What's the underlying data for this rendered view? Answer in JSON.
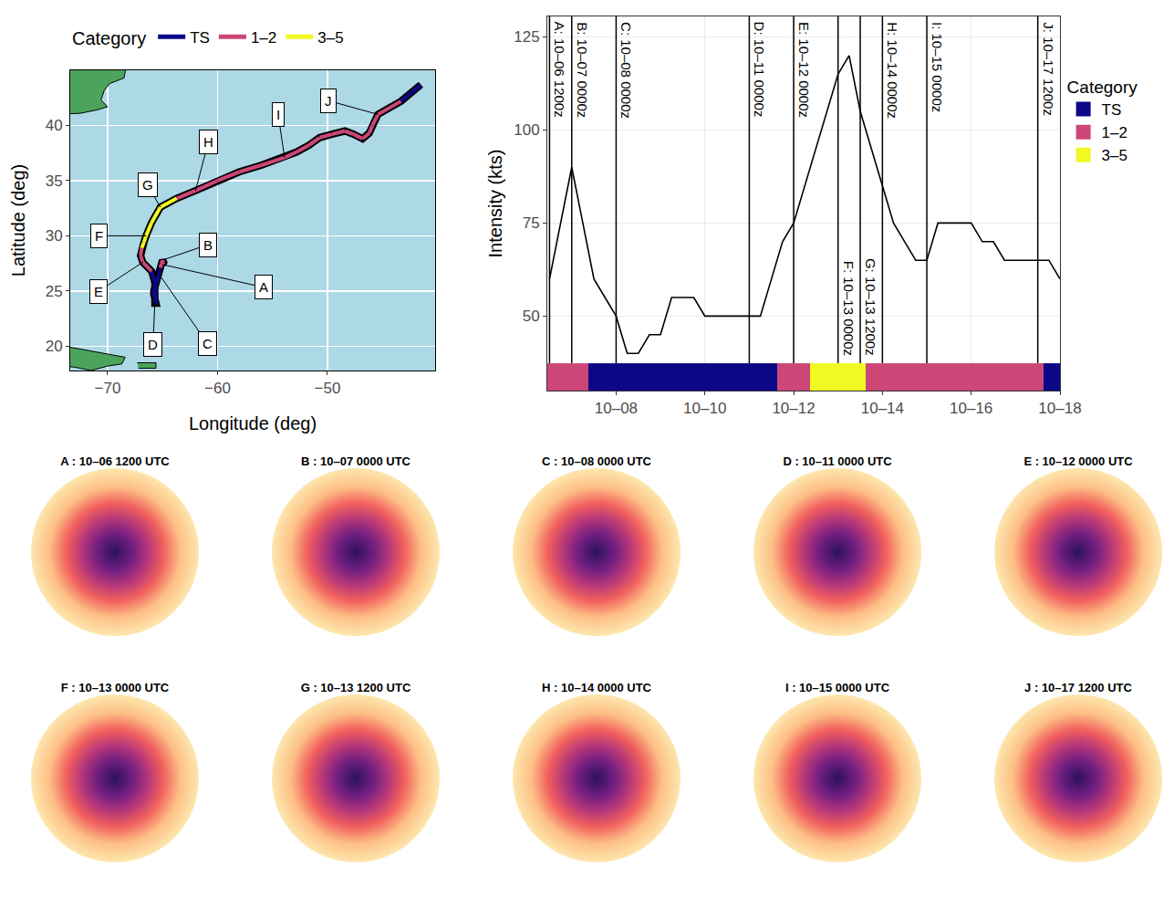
{
  "chart_data": [
    {
      "type": "line",
      "x_label": "Longitude (deg)",
      "y_label": "Latitude (deg)",
      "legend": "top",
      "legend_title": "Category",
      "grid": true,
      "color": "#000000",
      "xlim": [
        -73.4,
        -40.2
      ],
      "ylim": [
        17.8,
        45.0
      ],
      "xticks": [
        {
          "value": -70,
          "label": "−70"
        },
        {
          "value": -60,
          "label": "−60"
        },
        {
          "value": -50,
          "label": "−50"
        }
      ],
      "yticks": [
        20,
        25,
        30,
        35,
        40
      ],
      "series": [
        {
          "name": "TS",
          "color": "#0D0887"
        },
        {
          "name": "1–2",
          "color": "#CC4778"
        },
        {
          "name": "3–5",
          "color": "#F0F921"
        }
      ],
      "time": [
        6.5,
        6.75,
        7.0,
        7.25,
        7.5,
        7.75,
        8.0,
        8.25,
        8.5,
        8.75,
        9.0,
        9.25,
        9.5,
        9.75,
        10.0,
        10.25,
        10.5,
        10.75,
        11.0,
        11.25,
        11.5,
        11.75,
        12.0,
        12.25,
        12.5,
        12.75,
        13.0,
        13.25,
        13.5,
        13.75,
        14.0,
        14.25,
        14.5,
        14.75,
        15.0,
        15.25,
        15.5,
        15.75,
        16.0,
        16.25,
        16.5,
        16.75,
        17.0,
        17.25,
        17.5,
        17.75,
        18.0
      ],
      "x": [
        -65.0,
        -64.9,
        -65.0,
        -65.1,
        -65.2,
        -65.3,
        -65.3,
        -65.4,
        -65.5,
        -65.6,
        -65.7,
        -65.8,
        -65.8,
        -65.7,
        -65.6,
        -65.5,
        -65.6,
        -65.7,
        -65.7,
        -65.6,
        -65.7,
        -66.0,
        -66.8,
        -67.0,
        -66.9,
        -66.7,
        -66.5,
        -66.0,
        -65.2,
        -63.7,
        -62.0,
        -60.0,
        -58.0,
        -56.0,
        -53.9,
        -52.8,
        -51.7,
        -50.7,
        -49.6,
        -48.4,
        -47.6,
        -46.8,
        -46.2,
        -45.9,
        -45.4,
        -43.3,
        -41.5
      ],
      "y": [
        27.4,
        27.6,
        27.8,
        27.5,
        27.1,
        26.8,
        26.5,
        26.2,
        25.9,
        25.6,
        25.3,
        25.0,
        24.7,
        24.4,
        24.2,
        24.0,
        23.9,
        23.9,
        24.0,
        24.8,
        25.8,
        26.8,
        27.6,
        28.2,
        28.9,
        29.4,
        30.0,
        31.2,
        32.6,
        33.4,
        34.1,
        35.0,
        35.8,
        36.4,
        37.1,
        37.6,
        38.2,
        38.9,
        39.2,
        39.5,
        39.2,
        38.8,
        39.3,
        40.0,
        41.0,
        42.2,
        43.7
      ],
      "category": [
        "1–2",
        "1–2",
        "1–2",
        "1–2",
        "TS",
        "TS",
        "TS",
        "TS",
        "TS",
        "TS",
        "TS",
        "TS",
        "TS",
        "TS",
        "TS",
        "TS",
        "TS",
        "TS",
        "TS",
        "TS",
        "TS",
        "1–2",
        "1–2",
        "1–2",
        "3–5",
        "3–5",
        "3–5",
        "3–5",
        "3–5",
        "1–2",
        "1–2",
        "1–2",
        "1–2",
        "1–2",
        "1–2",
        "1–2",
        "1–2",
        "1–2",
        "1–2",
        "1–2",
        "1–2",
        "1–2",
        "1–2",
        "1–2",
        "1–2",
        "TS",
        "TS"
      ],
      "labels": [
        {
          "text": "A",
          "time": 6.5
        },
        {
          "text": "B",
          "time": 7.0
        },
        {
          "text": "C",
          "time": 8.0
        },
        {
          "text": "D",
          "time": 11.0
        },
        {
          "text": "E",
          "time": 12.0
        },
        {
          "text": "F",
          "time": 13.0
        },
        {
          "text": "G",
          "time": 13.5
        },
        {
          "text": "H",
          "time": 14.0
        },
        {
          "text": "I",
          "time": 15.0
        },
        {
          "text": "J",
          "time": 17.5
        }
      ],
      "land": {
        "color": "#4CA45C",
        "polygons": [
          {
            "lon": [
              -75,
              -68.2,
              -68.5,
              -69.8,
              -70.3,
              -70.6,
              -70.0,
              -71.0,
              -72.5,
              -75
            ],
            "lat": [
              46,
              46,
              44.3,
              43.8,
              43.2,
              42.3,
              41.7,
              41.4,
              41.1,
              41.0
            ]
          },
          {
            "lon": [
              -75,
              -68.4,
              -68.7,
              -70,
              -71.5,
              -73,
              -75
            ],
            "lat": [
              20.2,
              19.0,
              18.4,
              18.2,
              17.8,
              18.1,
              18.3
            ]
          },
          {
            "lon": [
              -67.3,
              -65.6,
              -65.6,
              -67.2
            ],
            "lat": [
              18.5,
              18.5,
              18.0,
              18.0
            ]
          }
        ]
      }
    },
    {
      "type": "line",
      "y_label": "Intensity (kts)",
      "legend": "right",
      "legend_title": "Category",
      "grid": true,
      "color": "#000000",
      "xlim": [
        6.45,
        18.0
      ],
      "ylim": [
        30,
        130.5
      ],
      "xticks": [
        {
          "value": 8,
          "label": "10–08"
        },
        {
          "value": 10,
          "label": "10–10"
        },
        {
          "value": 12,
          "label": "10–12"
        },
        {
          "value": 14,
          "label": "10–14"
        },
        {
          "value": 16,
          "label": "10–16"
        },
        {
          "value": 18,
          "label": "10–18"
        }
      ],
      "yticks": [
        50,
        75,
        100,
        125
      ],
      "series": [
        {
          "name": "TS",
          "color": "#0D0887"
        },
        {
          "name": "1–2",
          "color": "#CC4778"
        },
        {
          "name": "3–5",
          "color": "#F0F921"
        }
      ],
      "x": [
        6.5,
        6.75,
        7.0,
        7.25,
        7.5,
        7.75,
        8.0,
        8.25,
        8.5,
        8.75,
        9.0,
        9.25,
        9.5,
        9.75,
        10.0,
        10.25,
        10.5,
        10.75,
        11.0,
        11.25,
        11.5,
        11.75,
        12.0,
        12.25,
        12.5,
        12.75,
        13.0,
        13.25,
        13.5,
        13.75,
        14.0,
        14.25,
        14.5,
        14.75,
        15.0,
        15.25,
        15.5,
        15.75,
        16.0,
        16.25,
        16.5,
        16.75,
        17.0,
        17.25,
        17.5,
        17.75,
        18.0
      ],
      "values": [
        60,
        75,
        90,
        75,
        60,
        55,
        50,
        40,
        40,
        45,
        45,
        55,
        55,
        55,
        50,
        50,
        50,
        50,
        50,
        50,
        60,
        70,
        75,
        85,
        95,
        105,
        115,
        120,
        105,
        95,
        85,
        75,
        70,
        65,
        65,
        75,
        75,
        75,
        75,
        70,
        70,
        65,
        65,
        65,
        65,
        65,
        60
      ],
      "category": [
        "1–2",
        "1–2",
        "1–2",
        "1–2",
        "TS",
        "TS",
        "TS",
        "TS",
        "TS",
        "TS",
        "TS",
        "TS",
        "TS",
        "TS",
        "TS",
        "TS",
        "TS",
        "TS",
        "TS",
        "TS",
        "TS",
        "1–2",
        "1–2",
        "1–2",
        "3–5",
        "3–5",
        "3–5",
        "3–5",
        "3–5",
        "1–2",
        "1–2",
        "1–2",
        "1–2",
        "1–2",
        "1–2",
        "1–2",
        "1–2",
        "1–2",
        "1–2",
        "1–2",
        "1–2",
        "1–2",
        "1–2",
        "1–2",
        "1–2",
        "TS",
        "TS"
      ],
      "events": [
        {
          "x": 6.5,
          "label": "A: 10–06 1200z"
        },
        {
          "x": 7.0,
          "label": "B: 10–07 0000z"
        },
        {
          "x": 8.0,
          "label": "C: 10–08 0000z"
        },
        {
          "x": 11.0,
          "label": "D: 10–11 0000z"
        },
        {
          "x": 12.0,
          "label": "E: 10–12 0000z"
        },
        {
          "x": 13.0,
          "label": "F: 10–13 0000z"
        },
        {
          "x": 13.5,
          "label": "G: 10–13 1200z"
        },
        {
          "x": 14.0,
          "label": "H: 10–14 0000z"
        },
        {
          "x": 15.0,
          "label": "I: 10–15 0000z"
        },
        {
          "x": 17.5,
          "label": "J: 10–17 1200z"
        }
      ]
    }
  ],
  "image_panels": [
    {
      "title": "A : 10–06 1200 UTC"
    },
    {
      "title": "B : 10–07 0000 UTC"
    },
    {
      "title": "C : 10–08 0000 UTC"
    },
    {
      "title": "D : 10–11 0000 UTC"
    },
    {
      "title": "E : 10–12 0000 UTC"
    },
    {
      "title": "F : 10–13 0000 UTC"
    },
    {
      "title": "G : 10–13 1200 UTC"
    },
    {
      "title": "H : 10–14 0000 UTC"
    },
    {
      "title": "I : 10–15 0000 UTC"
    },
    {
      "title": "J : 10–17 1200 UTC"
    }
  ]
}
